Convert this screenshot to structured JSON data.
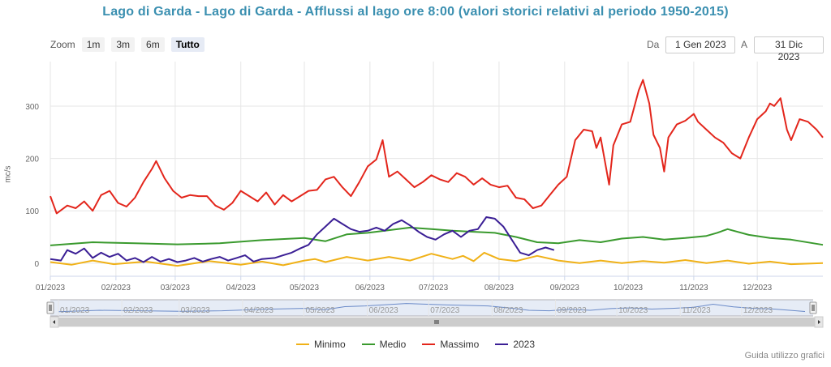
{
  "title": "Lago di Garda - Lago di Garda - Afflussi al lago ore 8:00 (valori storici relativi al periodo 1950-2015)",
  "zoom": {
    "label": "Zoom",
    "buttons": [
      "1m",
      "3m",
      "6m",
      "Tutto"
    ],
    "active": "Tutto"
  },
  "range": {
    "from_label": "Da",
    "from_value": "1 Gen 2023",
    "to_label": "A",
    "to_value": "31 Dic 2023"
  },
  "guide_link": "Guida utilizzo grafici",
  "colors": {
    "minimo": "#f0b117",
    "medio": "#3a9a2e",
    "massimo": "#e3261c",
    "y2023": "#3b1f95",
    "navigator": "#6a8ac8"
  },
  "chart_data": {
    "type": "line",
    "title": "Lago di Garda - Lago di Garda - Afflussi al lago ore 8:00 (valori storici relativi al periodo 1950-2015)",
    "ylabel": "mc/s",
    "xlabel": "",
    "ylim": [
      -25,
      385
    ],
    "yticks": [
      0,
      100,
      200,
      300
    ],
    "xlim": [
      0,
      365
    ],
    "x_tick_labels": [
      "01/2023",
      "02/2023",
      "03/2023",
      "04/2023",
      "05/2023",
      "06/2023",
      "07/2023",
      "08/2023",
      "09/2023",
      "10/2023",
      "11/2023",
      "12/2023"
    ],
    "x_tick_days": [
      0,
      31,
      59,
      90,
      120,
      151,
      181,
      212,
      243,
      273,
      304,
      334
    ],
    "grid": true,
    "legend": "bottom-center",
    "series": [
      {
        "name": "Minimo",
        "color": "#f0b117",
        "points": [
          [
            0,
            2
          ],
          [
            10,
            -3
          ],
          [
            20,
            5
          ],
          [
            30,
            -2
          ],
          [
            45,
            3
          ],
          [
            60,
            -5
          ],
          [
            75,
            4
          ],
          [
            90,
            -3
          ],
          [
            100,
            3
          ],
          [
            110,
            -4
          ],
          [
            120,
            5
          ],
          [
            125,
            8
          ],
          [
            130,
            2
          ],
          [
            140,
            12
          ],
          [
            150,
            5
          ],
          [
            160,
            12
          ],
          [
            170,
            5
          ],
          [
            180,
            18
          ],
          [
            190,
            8
          ],
          [
            195,
            14
          ],
          [
            200,
            4
          ],
          [
            205,
            20
          ],
          [
            212,
            8
          ],
          [
            220,
            4
          ],
          [
            230,
            14
          ],
          [
            240,
            5
          ],
          [
            250,
            0
          ],
          [
            260,
            5
          ],
          [
            270,
            0
          ],
          [
            280,
            4
          ],
          [
            290,
            1
          ],
          [
            300,
            6
          ],
          [
            310,
            0
          ],
          [
            320,
            5
          ],
          [
            330,
            -1
          ],
          [
            340,
            3
          ],
          [
            350,
            -2
          ],
          [
            365,
            0
          ]
        ]
      },
      {
        "name": "Medio",
        "color": "#3a9a2e",
        "points": [
          [
            0,
            34
          ],
          [
            20,
            40
          ],
          [
            40,
            38
          ],
          [
            60,
            36
          ],
          [
            80,
            38
          ],
          [
            100,
            44
          ],
          [
            120,
            48
          ],
          [
            130,
            42
          ],
          [
            140,
            55
          ],
          [
            150,
            58
          ],
          [
            160,
            63
          ],
          [
            170,
            68
          ],
          [
            180,
            65
          ],
          [
            190,
            62
          ],
          [
            200,
            60
          ],
          [
            210,
            58
          ],
          [
            220,
            50
          ],
          [
            230,
            40
          ],
          [
            240,
            38
          ],
          [
            250,
            44
          ],
          [
            260,
            40
          ],
          [
            270,
            47
          ],
          [
            280,
            50
          ],
          [
            290,
            45
          ],
          [
            300,
            48
          ],
          [
            310,
            52
          ],
          [
            315,
            58
          ],
          [
            320,
            65
          ],
          [
            330,
            54
          ],
          [
            340,
            48
          ],
          [
            350,
            45
          ],
          [
            365,
            35
          ]
        ]
      },
      {
        "name": "Massimo",
        "color": "#e3261c",
        "points": [
          [
            0,
            128
          ],
          [
            3,
            95
          ],
          [
            8,
            110
          ],
          [
            12,
            105
          ],
          [
            16,
            118
          ],
          [
            20,
            100
          ],
          [
            24,
            130
          ],
          [
            28,
            138
          ],
          [
            32,
            115
          ],
          [
            36,
            108
          ],
          [
            40,
            125
          ],
          [
            44,
            155
          ],
          [
            48,
            180
          ],
          [
            50,
            195
          ],
          [
            54,
            162
          ],
          [
            58,
            138
          ],
          [
            62,
            125
          ],
          [
            66,
            130
          ],
          [
            70,
            128
          ],
          [
            74,
            128
          ],
          [
            78,
            110
          ],
          [
            82,
            102
          ],
          [
            86,
            115
          ],
          [
            90,
            138
          ],
          [
            94,
            128
          ],
          [
            98,
            118
          ],
          [
            102,
            135
          ],
          [
            106,
            112
          ],
          [
            110,
            130
          ],
          [
            114,
            118
          ],
          [
            118,
            128
          ],
          [
            122,
            138
          ],
          [
            126,
            140
          ],
          [
            130,
            160
          ],
          [
            134,
            165
          ],
          [
            138,
            145
          ],
          [
            142,
            128
          ],
          [
            146,
            155
          ],
          [
            150,
            185
          ],
          [
            154,
            198
          ],
          [
            157,
            235
          ],
          [
            160,
            165
          ],
          [
            164,
            175
          ],
          [
            168,
            160
          ],
          [
            172,
            145
          ],
          [
            176,
            155
          ],
          [
            180,
            168
          ],
          [
            184,
            160
          ],
          [
            188,
            155
          ],
          [
            192,
            172
          ],
          [
            196,
            165
          ],
          [
            200,
            150
          ],
          [
            204,
            162
          ],
          [
            208,
            150
          ],
          [
            212,
            145
          ],
          [
            216,
            148
          ],
          [
            220,
            125
          ],
          [
            224,
            122
          ],
          [
            228,
            105
          ],
          [
            232,
            110
          ],
          [
            236,
            130
          ],
          [
            240,
            150
          ],
          [
            244,
            165
          ],
          [
            248,
            235
          ],
          [
            252,
            255
          ],
          [
            256,
            252
          ],
          [
            258,
            220
          ],
          [
            260,
            240
          ],
          [
            264,
            150
          ],
          [
            266,
            225
          ],
          [
            270,
            265
          ],
          [
            274,
            270
          ],
          [
            278,
            330
          ],
          [
            280,
            350
          ],
          [
            283,
            305
          ],
          [
            285,
            245
          ],
          [
            288,
            220
          ],
          [
            290,
            175
          ],
          [
            292,
            240
          ],
          [
            296,
            265
          ],
          [
            300,
            272
          ],
          [
            304,
            285
          ],
          [
            306,
            270
          ],
          [
            310,
            255
          ],
          [
            314,
            240
          ],
          [
            318,
            230
          ],
          [
            322,
            210
          ],
          [
            326,
            200
          ],
          [
            330,
            240
          ],
          [
            334,
            275
          ],
          [
            338,
            290
          ],
          [
            340,
            305
          ],
          [
            342,
            300
          ],
          [
            345,
            315
          ],
          [
            348,
            255
          ],
          [
            350,
            235
          ],
          [
            354,
            275
          ],
          [
            358,
            270
          ],
          [
            362,
            255
          ],
          [
            365,
            240
          ]
        ]
      },
      {
        "name": "2023",
        "color": "#3b1f95",
        "points": [
          [
            0,
            8
          ],
          [
            5,
            5
          ],
          [
            8,
            25
          ],
          [
            12,
            18
          ],
          [
            16,
            28
          ],
          [
            20,
            10
          ],
          [
            24,
            20
          ],
          [
            28,
            12
          ],
          [
            32,
            18
          ],
          [
            36,
            5
          ],
          [
            40,
            10
          ],
          [
            44,
            2
          ],
          [
            48,
            12
          ],
          [
            52,
            3
          ],
          [
            56,
            8
          ],
          [
            60,
            2
          ],
          [
            64,
            5
          ],
          [
            68,
            10
          ],
          [
            72,
            3
          ],
          [
            76,
            8
          ],
          [
            80,
            12
          ],
          [
            84,
            5
          ],
          [
            88,
            10
          ],
          [
            92,
            15
          ],
          [
            96,
            3
          ],
          [
            100,
            8
          ],
          [
            106,
            10
          ],
          [
            110,
            15
          ],
          [
            114,
            20
          ],
          [
            118,
            28
          ],
          [
            122,
            35
          ],
          [
            126,
            55
          ],
          [
            130,
            70
          ],
          [
            134,
            85
          ],
          [
            138,
            75
          ],
          [
            142,
            65
          ],
          [
            146,
            60
          ],
          [
            150,
            62
          ],
          [
            154,
            68
          ],
          [
            158,
            62
          ],
          [
            162,
            75
          ],
          [
            166,
            82
          ],
          [
            170,
            72
          ],
          [
            174,
            60
          ],
          [
            178,
            50
          ],
          [
            182,
            45
          ],
          [
            186,
            55
          ],
          [
            190,
            62
          ],
          [
            194,
            50
          ],
          [
            198,
            62
          ],
          [
            202,
            65
          ],
          [
            206,
            88
          ],
          [
            210,
            85
          ],
          [
            214,
            70
          ],
          [
            218,
            45
          ],
          [
            222,
            20
          ],
          [
            226,
            15
          ],
          [
            230,
            25
          ],
          [
            234,
            30
          ],
          [
            238,
            25
          ]
        ]
      }
    ]
  }
}
